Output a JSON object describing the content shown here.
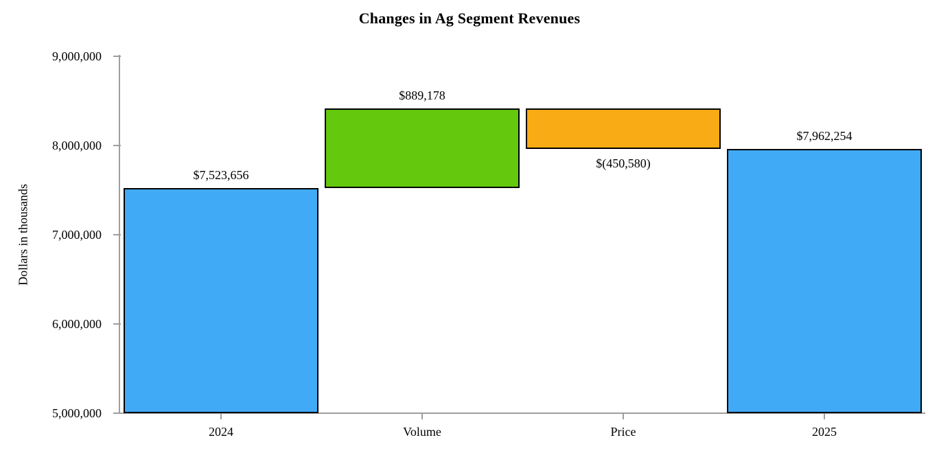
{
  "chart_data": {
    "type": "bar",
    "variant": "waterfall",
    "title": "Changes in Ag Segment Revenues",
    "ylabel": "Dollars in thousands",
    "xlabel": "",
    "ylim": [
      5000000,
      9000000
    ],
    "grid": false,
    "legend": false,
    "yticks": [
      {
        "value": 9000000,
        "label": "9,000,000"
      },
      {
        "value": 8000000,
        "label": "8,000,000"
      },
      {
        "value": 7000000,
        "label": "7,000,000"
      },
      {
        "value": 6000000,
        "label": "6,000,000"
      },
      {
        "value": 5000000,
        "label": "5,000,000"
      }
    ],
    "categories": [
      "2024",
      "Volume",
      "Price",
      "2025"
    ],
    "bars": [
      {
        "category": "2024",
        "role": "total",
        "value": 7523656,
        "data_label": "$7,523,656",
        "color": "#41AAF7"
      },
      {
        "category": "Volume",
        "role": "increase",
        "value": 889178,
        "data_label": "$889,178",
        "color": "#64C80C"
      },
      {
        "category": "Price",
        "role": "decrease",
        "value": -450580,
        "data_label": "$(450,580)",
        "color": "#F8AB14"
      },
      {
        "category": "2025",
        "role": "total",
        "value": 7962254,
        "data_label": "$7,962,254",
        "color": "#41AAF7"
      }
    ],
    "axis_color": "#9E9E9E",
    "bar_border_color": "#000000"
  }
}
